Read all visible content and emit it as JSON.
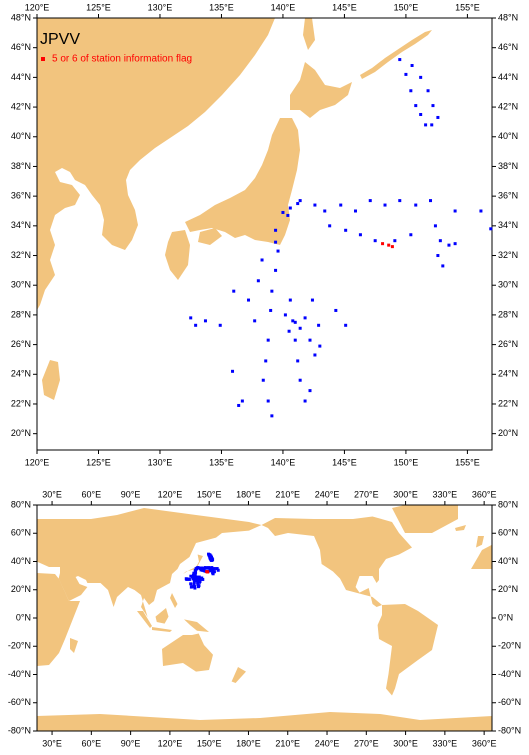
{
  "chart_data": [
    {
      "type": "scatter",
      "title": "JPVV",
      "xlim": [
        120,
        157
      ],
      "ylim": [
        18.9,
        48
      ],
      "xticks": [
        {
          "value": 120,
          "label": "120°E"
        },
        {
          "value": 125,
          "label": "125°E"
        },
        {
          "value": 130,
          "label": "130°E"
        },
        {
          "value": 135,
          "label": "135°E"
        },
        {
          "value": 140,
          "label": "140°E"
        },
        {
          "value": 145,
          "label": "145°E"
        },
        {
          "value": 150,
          "label": "150°E"
        },
        {
          "value": 155,
          "label": "155°E"
        }
      ],
      "yticks": [
        {
          "value": 20,
          "label": "20°N"
        },
        {
          "value": 22,
          "label": "22°N"
        },
        {
          "value": 24,
          "label": "24°N"
        },
        {
          "value": 26,
          "label": "26°N"
        },
        {
          "value": 28,
          "label": "28°N"
        },
        {
          "value": 30,
          "label": "30°N"
        },
        {
          "value": 32,
          "label": "32°N"
        },
        {
          "value": 34,
          "label": "34°N"
        },
        {
          "value": 36,
          "label": "36°N"
        },
        {
          "value": 38,
          "label": "38°N"
        },
        {
          "value": 40,
          "label": "40°N"
        },
        {
          "value": 42,
          "label": "42°N"
        },
        {
          "value": 44,
          "label": "44°N"
        },
        {
          "value": 46,
          "label": "46°N"
        },
        {
          "value": 48,
          "label": "48°N"
        }
      ],
      "series": [
        {
          "color": "#0000ff",
          "x": [
            149.5,
            150.0,
            150.4,
            150.8,
            151.2,
            151.6,
            152.1,
            152.6,
            152.2,
            151.8,
            151.2,
            150.5,
            140.0,
            140.6,
            141.2,
            141.4,
            140.4,
            142.6,
            143.4,
            144.7,
            145.9,
            147.1,
            148.3,
            149.5,
            150.8,
            152.0,
            154.0,
            156.1,
            156.9,
            143.8,
            145.1,
            146.3,
            147.5,
            149.1,
            150.4,
            152.4,
            152.8,
            152.6,
            153.0,
            153.5,
            154.0,
            139.4,
            139.6,
            139.4,
            139.1,
            139.0,
            138.8,
            138.6,
            138.4,
            138.8,
            139.1,
            140.6,
            140.8,
            141.0,
            141.2,
            141.4,
            141.8,
            142.2,
            140.2,
            141.0,
            141.4,
            140.5,
            141.8,
            142.2,
            142.6,
            143.0,
            142.9,
            144.3,
            145.1,
            132.5,
            132.9,
            133.7,
            134.9,
            136.0,
            135.9,
            136.4,
            136.7,
            137.2,
            137.7,
            138.0,
            138.3,
            142.4,
            139.4
          ],
          "y": [
            45.2,
            44.2,
            43.1,
            42.1,
            41.5,
            40.8,
            40.8,
            41.3,
            42.1,
            43.1,
            44.0,
            44.8,
            34.9,
            35.2,
            35.5,
            35.7,
            34.7,
            35.4,
            35.0,
            35.4,
            35.0,
            35.7,
            35.4,
            35.7,
            35.4,
            35.7,
            35.0,
            35.0,
            33.8,
            34.0,
            33.7,
            33.4,
            33.0,
            33.0,
            33.4,
            34.0,
            33.0,
            32.0,
            31.3,
            32.7,
            32.8,
            33.7,
            32.3,
            31.0,
            29.6,
            28.3,
            26.3,
            24.9,
            23.6,
            22.2,
            21.2,
            29.0,
            27.6,
            26.3,
            24.9,
            23.6,
            22.2,
            22.9,
            28.0,
            27.5,
            27.1,
            26.9,
            27.8,
            26.3,
            25.3,
            25.9,
            27.3,
            28.3,
            27.3,
            27.8,
            27.3,
            27.6,
            27.3,
            29.6,
            24.2,
            21.9,
            22.2,
            29.0,
            27.6,
            30.3,
            31.7,
            29.0,
            32.9
          ]
        },
        {
          "name": "5 or 6 of station information flag",
          "color": "#ff0000",
          "x": [
            148.1,
            148.6,
            148.9
          ],
          "y": [
            32.8,
            32.7,
            32.6
          ]
        }
      ]
    },
    {
      "type": "map",
      "xlim": [
        18.5,
        366
      ],
      "ylim": [
        -80,
        80
      ],
      "xticks": [
        {
          "value": 30,
          "label": "30°E"
        },
        {
          "value": 60,
          "label": "60°E"
        },
        {
          "value": 90,
          "label": "90°E"
        },
        {
          "value": 120,
          "label": "120°E"
        },
        {
          "value": 150,
          "label": "150°E"
        },
        {
          "value": 180,
          "label": "180°E"
        },
        {
          "value": 210,
          "label": "210°E"
        },
        {
          "value": 240,
          "label": "240°E"
        },
        {
          "value": 270,
          "label": "270°E"
        },
        {
          "value": 300,
          "label": "300°E"
        },
        {
          "value": 330,
          "label": "330°E"
        },
        {
          "value": 360,
          "label": "360°E"
        }
      ],
      "yticks": [
        {
          "value": -80,
          "label": "-80°N"
        },
        {
          "value": -60,
          "label": "-60°N"
        },
        {
          "value": -40,
          "label": "-40°N"
        },
        {
          "value": -20,
          "label": "-20°N"
        },
        {
          "value": 0,
          "label": "0°N"
        },
        {
          "value": 20,
          "label": "20°N"
        },
        {
          "value": 40,
          "label": "40°N"
        },
        {
          "value": 60,
          "label": "60°N"
        },
        {
          "value": 80,
          "label": "80°N"
        }
      ]
    }
  ]
}
